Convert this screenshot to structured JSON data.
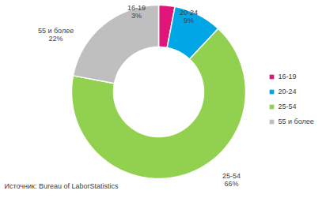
{
  "chart_data": {
    "type": "pie",
    "categories": [
      "16-19",
      "20-24",
      "25-54",
      "55 и более"
    ],
    "values": [
      3,
      9,
      66,
      22
    ],
    "value_labels": [
      "3%",
      "9%",
      "66%",
      "22%"
    ],
    "colors": [
      "#e0157a",
      "#00a6e6",
      "#92d050",
      "#bfbfbf"
    ],
    "data_labels": true,
    "legend": "right",
    "source": "Источник: Bureau of LaborStatistics"
  }
}
